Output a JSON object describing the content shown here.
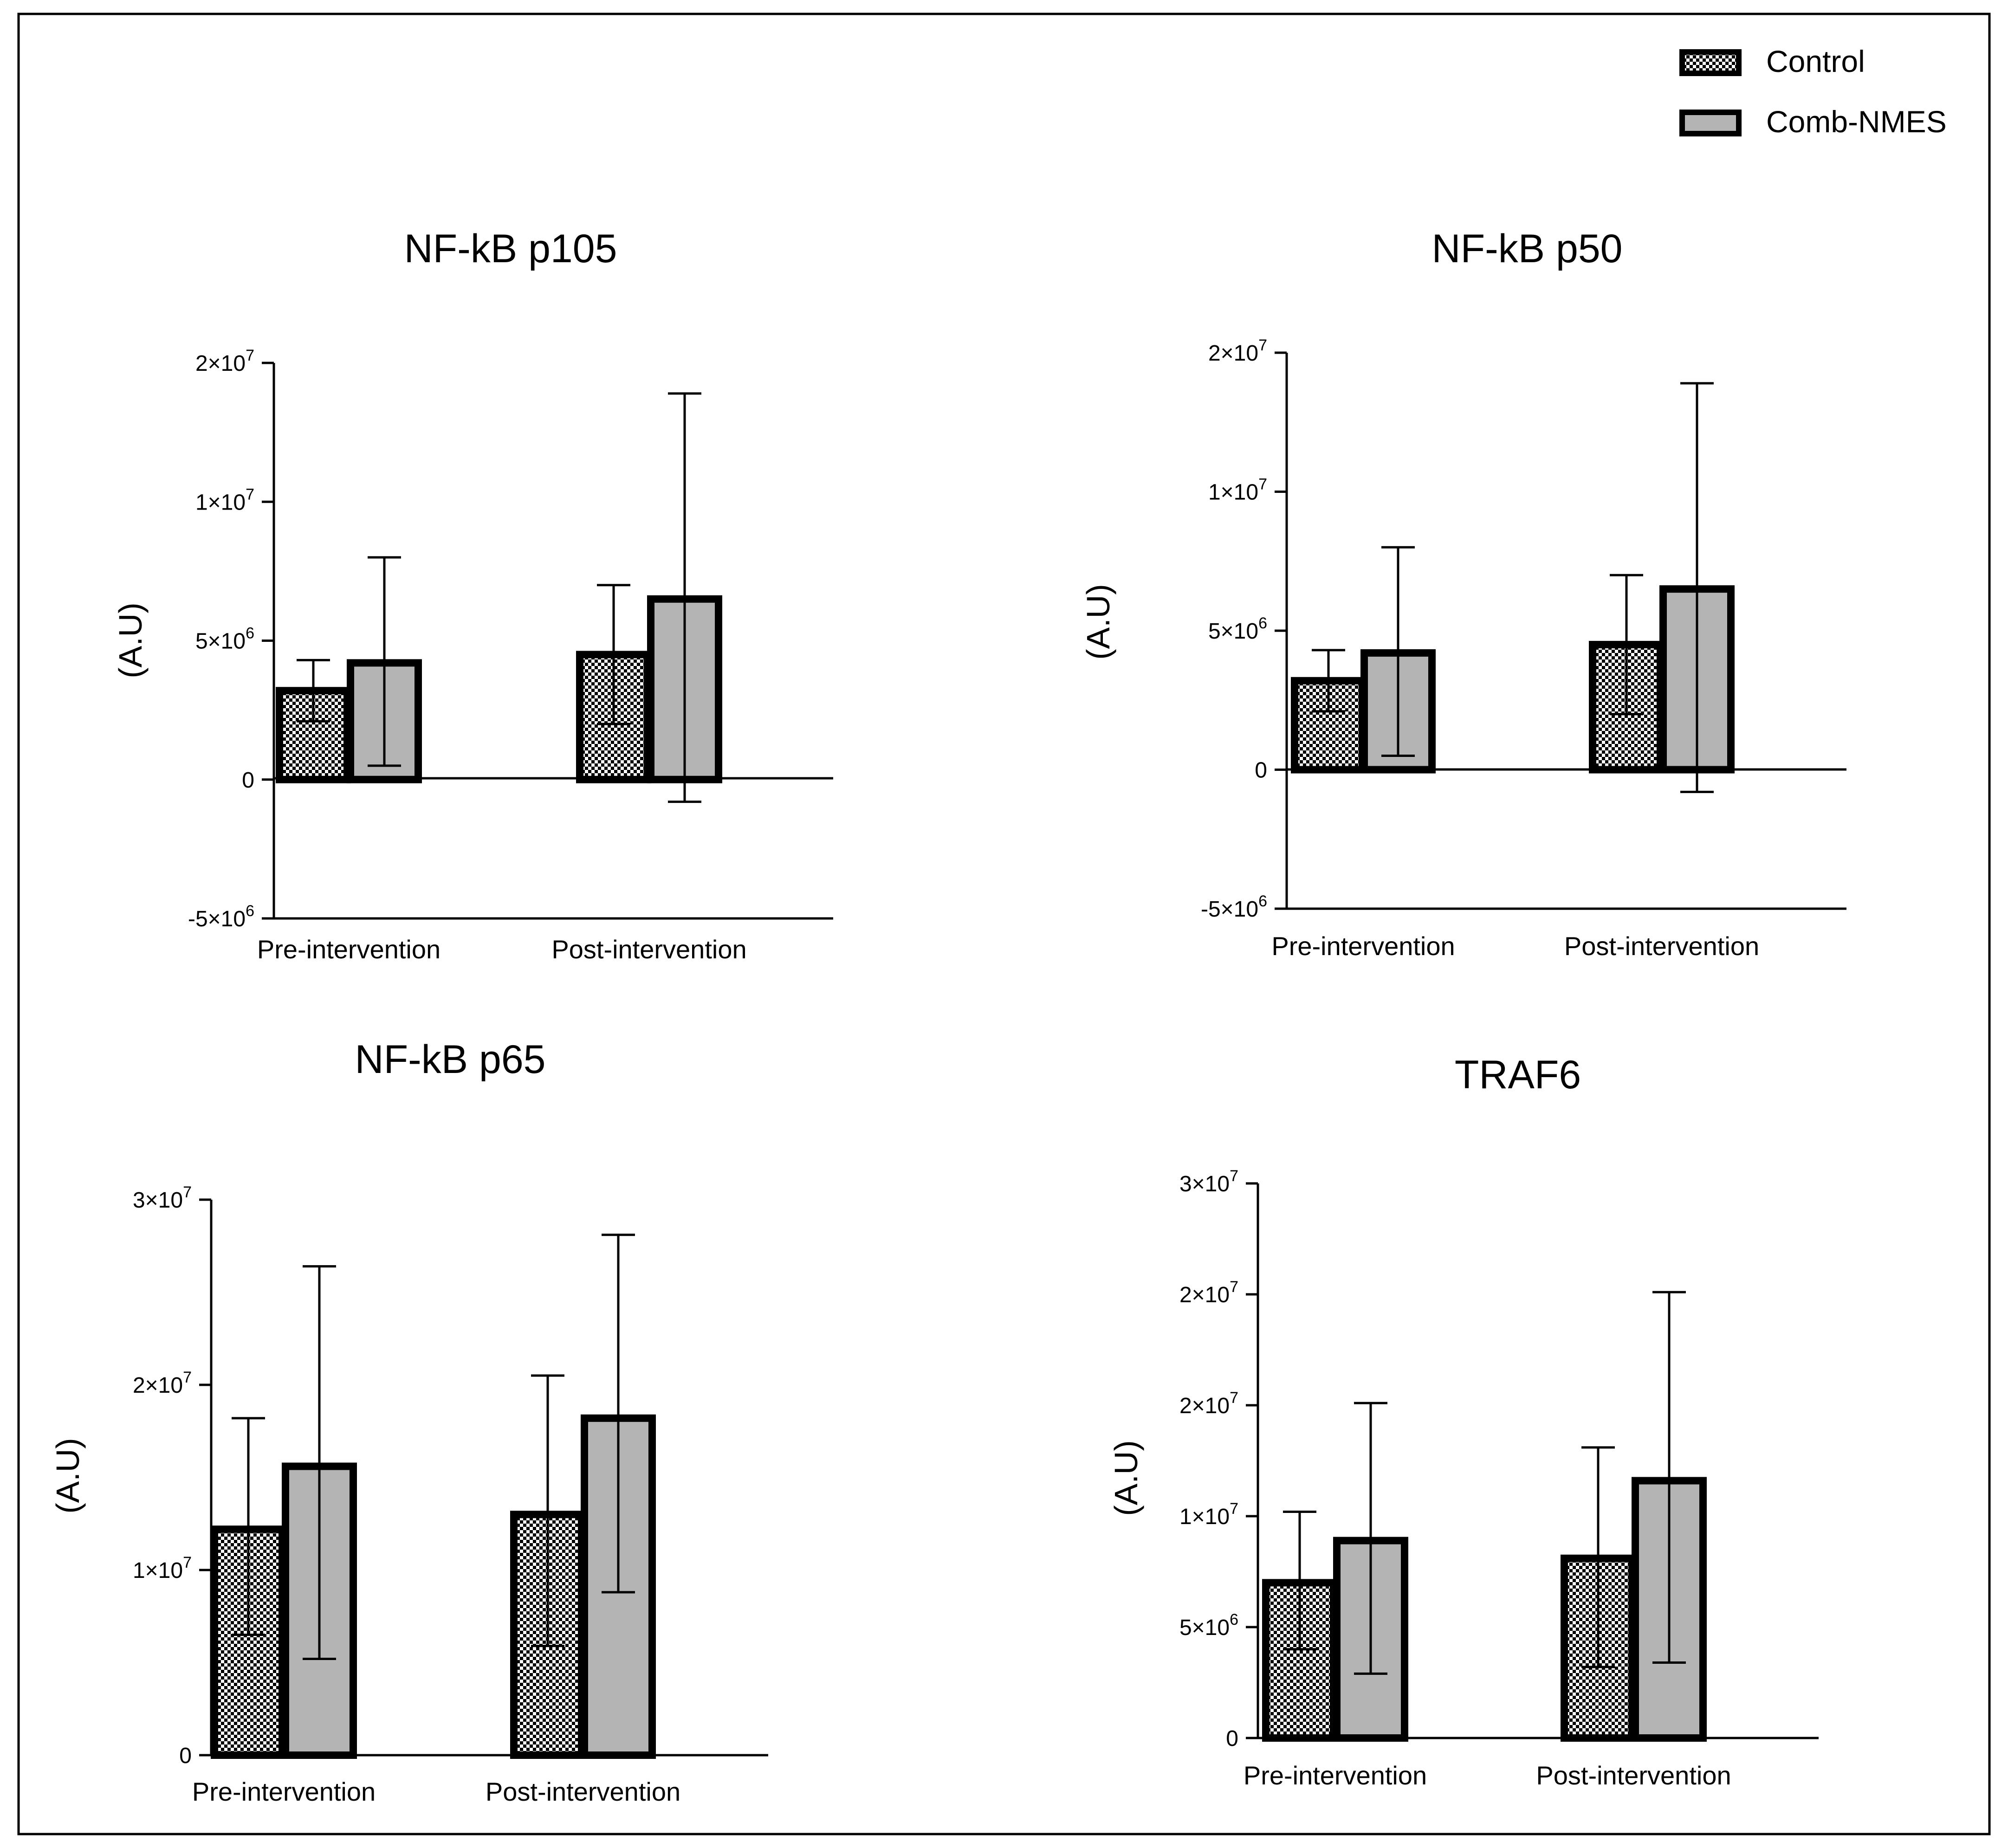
{
  "chart_data": [
    {
      "type": "bar",
      "title": "NF-kB p105",
      "ylabel": "(A.U)",
      "xlabel": "",
      "categories": [
        "Pre-intervention",
        "Post-intervention"
      ],
      "ylim": [
        -5000000,
        15000000
      ],
      "yticks": [
        {
          "value": 15000000,
          "base": "2×10",
          "exp": "7"
        },
        {
          "value": 10000000,
          "base": "1×10",
          "exp": "7"
        },
        {
          "value": 5000000,
          "base": "5×10",
          "exp": "6"
        },
        {
          "value": 0,
          "base": "0",
          "exp": ""
        },
        {
          "value": -5000000,
          "base": "-5×10",
          "exp": "6"
        }
      ],
      "series": [
        {
          "name": "Control",
          "values": [
            3200000,
            4500000
          ],
          "err_high": [
            4300000,
            7000000
          ],
          "err_low": [
            2100000,
            2000000
          ]
        },
        {
          "name": "Comb-NMES",
          "values": [
            4200000,
            6500000
          ],
          "err_high": [
            8000000,
            13900000
          ],
          "err_low": [
            500000,
            -800000
          ]
        }
      ]
    },
    {
      "type": "bar",
      "title": "NF-kB p50",
      "ylabel": "(A.U)",
      "xlabel": "",
      "categories": [
        "Pre-intervention",
        "Post-intervention"
      ],
      "ylim": [
        -5000000,
        15000000
      ],
      "yticks": [
        {
          "value": 15000000,
          "base": "2×10",
          "exp": "7"
        },
        {
          "value": 10000000,
          "base": "1×10",
          "exp": "7"
        },
        {
          "value": 5000000,
          "base": "5×10",
          "exp": "6"
        },
        {
          "value": 0,
          "base": "0",
          "exp": ""
        },
        {
          "value": -5000000,
          "base": "-5×10",
          "exp": "6"
        }
      ],
      "series": [
        {
          "name": "Control",
          "values": [
            3200000,
            4500000
          ],
          "err_high": [
            4300000,
            7000000
          ],
          "err_low": [
            2100000,
            2000000
          ]
        },
        {
          "name": "Comb-NMES",
          "values": [
            4200000,
            6500000
          ],
          "err_high": [
            8000000,
            13900000
          ],
          "err_low": [
            500000,
            -800000
          ]
        }
      ]
    },
    {
      "type": "bar",
      "title": "NF-kB p65",
      "ylabel": "(A.U)",
      "xlabel": "",
      "categories": [
        "Pre-intervention",
        "Post-intervention"
      ],
      "ylim": [
        0,
        30000000
      ],
      "yticks": [
        {
          "value": 30000000,
          "base": "3×10",
          "exp": "7"
        },
        {
          "value": 20000000,
          "base": "2×10",
          "exp": "7"
        },
        {
          "value": 10000000,
          "base": "1×10",
          "exp": "7"
        },
        {
          "value": 0,
          "base": "0",
          "exp": ""
        }
      ],
      "series": [
        {
          "name": "Control",
          "values": [
            12200000,
            13000000
          ],
          "err_high": [
            18200000,
            20500000
          ],
          "err_low": [
            6500000,
            5900000
          ]
        },
        {
          "name": "Comb-NMES",
          "values": [
            15600000,
            18200000
          ],
          "err_high": [
            26400000,
            28100000
          ],
          "err_low": [
            5200000,
            8800000
          ]
        }
      ]
    },
    {
      "type": "bar",
      "title": "TRAF6",
      "ylabel": "(A.U)",
      "xlabel": "",
      "categories": [
        "Pre-intervention",
        "Post-intervention"
      ],
      "ylim": [
        0,
        25000000
      ],
      "yticks": [
        {
          "value": 25000000,
          "base": "3×10",
          "exp": "7"
        },
        {
          "value": 20000000,
          "base": "2×10",
          "exp": "7"
        },
        {
          "value": 15000000,
          "base": "2×10",
          "exp": "7"
        },
        {
          "value": 10000000,
          "base": "1×10",
          "exp": "7"
        },
        {
          "value": 5000000,
          "base": "5×10",
          "exp": "6"
        },
        {
          "value": 0,
          "base": "0",
          "exp": ""
        }
      ],
      "series": [
        {
          "name": "Control",
          "values": [
            7000000,
            8100000
          ],
          "err_high": [
            10200000,
            13100000
          ],
          "err_low": [
            4000000,
            3200000
          ]
        },
        {
          "name": "Comb-NMES",
          "values": [
            8900000,
            11600000
          ],
          "err_high": [
            15100000,
            20100000
          ],
          "err_low": [
            2900000,
            3400000
          ]
        }
      ]
    }
  ],
  "legend": {
    "items": [
      {
        "label": "Control",
        "pattern": "checker"
      },
      {
        "label": "Comb-NMES",
        "pattern": "gray"
      }
    ]
  },
  "colors": {
    "bar_gray": "#b4b4b4",
    "stroke": "#000000",
    "checker_dark": "#000000",
    "checker_light": "#ffffff"
  }
}
